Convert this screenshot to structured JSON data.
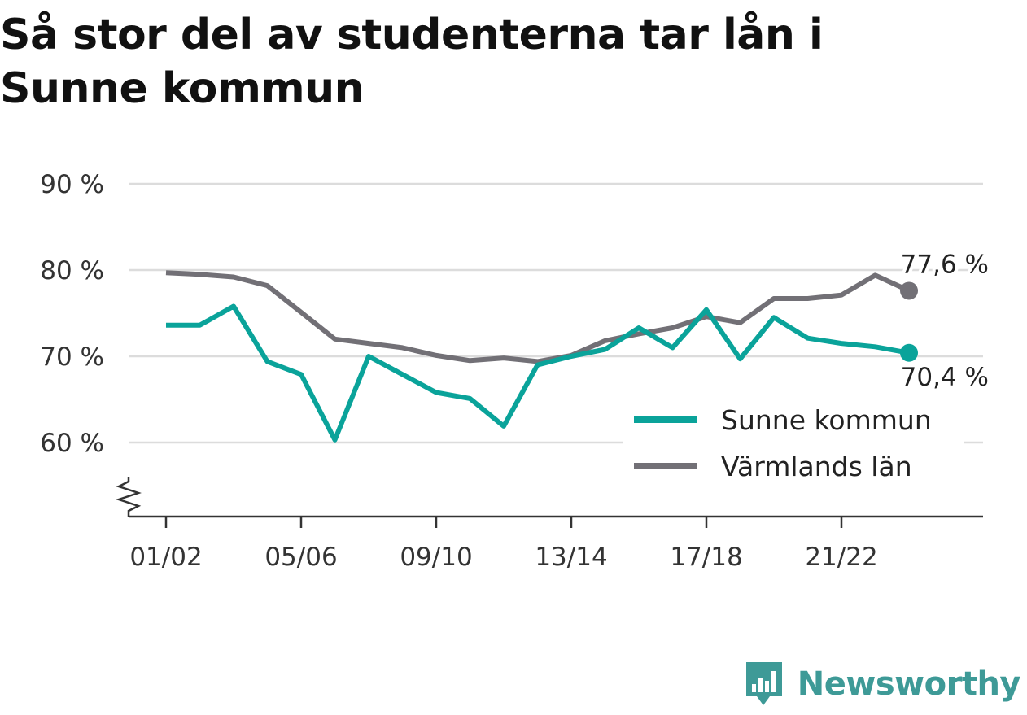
{
  "title": "Så stor del av studenterna tar lån i Sunne kommun",
  "brand": {
    "name": "Newsworthy",
    "color": "#3e9a97",
    "icon": "bar-chart-bubble-icon"
  },
  "chart_data": {
    "type": "line",
    "title": "Så stor del av studenterna tar lån i Sunne kommun",
    "xlabel": "",
    "ylabel": "",
    "y_unit": "%",
    "ylim": [
      51,
      90
    ],
    "y_ticks": [
      {
        "value": 60,
        "label": "60 %"
      },
      {
        "value": 70,
        "label": "70 %"
      },
      {
        "value": 80,
        "label": "80 %"
      },
      {
        "value": 90,
        "label": "90 %"
      }
    ],
    "axis_break": true,
    "grid": "horizontal",
    "legend_position": "bottom-right",
    "categories": [
      "01/02",
      "02/03",
      "03/04",
      "04/05",
      "05/06",
      "06/07",
      "07/08",
      "08/09",
      "09/10",
      "10/11",
      "11/12",
      "12/13",
      "13/14",
      "14/15",
      "15/16",
      "16/17",
      "17/18",
      "18/19",
      "19/20",
      "20/21",
      "21/22",
      "22/23",
      "23/24"
    ],
    "x_tick_labels": [
      "01/02",
      "05/06",
      "09/10",
      "13/14",
      "17/18",
      "21/22"
    ],
    "series": [
      {
        "name": "Sunne kommun",
        "color": "#0aa39a",
        "values": [
          73.6,
          73.6,
          75.8,
          69.4,
          67.9,
          60.3,
          70.0,
          67.9,
          65.8,
          65.1,
          61.9,
          69.0,
          70.0,
          70.8,
          73.3,
          71.0,
          75.4,
          69.7,
          74.5,
          72.1,
          71.5,
          71.1,
          70.4
        ],
        "end_label": "70,4 %"
      },
      {
        "name": "Värmlands län",
        "color": "#727076",
        "values": [
          79.7,
          79.5,
          79.2,
          78.2,
          75.1,
          72.0,
          71.5,
          71.0,
          70.1,
          69.5,
          69.8,
          69.4,
          70.1,
          71.8,
          72.6,
          73.3,
          74.6,
          73.9,
          76.7,
          76.7,
          77.1,
          79.4,
          77.6
        ],
        "end_label": "77,6 %"
      }
    ]
  }
}
